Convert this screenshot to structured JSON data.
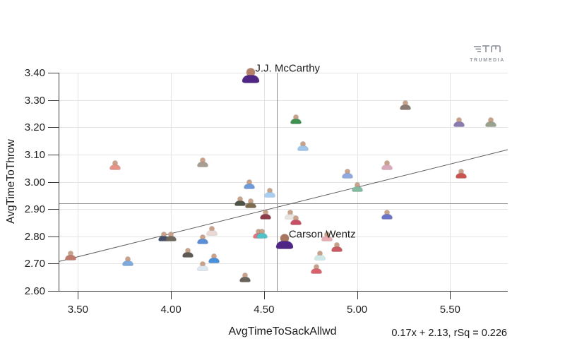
{
  "logo": {
    "text": "TRUMEDIA"
  },
  "chart_data": {
    "type": "scatter",
    "title": "",
    "xlabel": "AvgTimeToSackAllwd",
    "ylabel": "AvgTimeToThrow",
    "xlim": [
      3.4,
      5.81
    ],
    "ylim": [
      2.6,
      3.4
    ],
    "xticks": [
      3.5,
      4.0,
      4.5,
      5.0,
      5.5
    ],
    "yticks": [
      2.6,
      2.7,
      2.8,
      2.9,
      3.0,
      3.1,
      3.2,
      3.3,
      3.4
    ],
    "grid": true,
    "legend": "none",
    "mean_lines": {
      "x": 4.57,
      "y": 2.92
    },
    "trend": {
      "slope": 0.17,
      "intercept": 2.13,
      "rsq": 0.226,
      "equation": "0.17x + 2.13, rSq = 0.226"
    },
    "points": [
      {
        "x": 4.43,
        "y": 3.39,
        "jersey": "#4F2683",
        "skin": "#b5806a",
        "big": true,
        "label": "J.J. McCarthy"
      },
      {
        "x": 4.61,
        "y": 2.78,
        "jersey": "#4F2683",
        "skin": "#a8765f",
        "big": true,
        "label": "Carson Wentz"
      },
      {
        "x": 3.46,
        "y": 2.73,
        "jersey": "#c07a6d"
      },
      {
        "x": 3.7,
        "y": 3.06,
        "jersey": "#e59287"
      },
      {
        "x": 3.77,
        "y": 2.71,
        "jersey": "#7fa9dc"
      },
      {
        "x": 3.96,
        "y": 2.8,
        "jersey": "#45516b"
      },
      {
        "x": 4.0,
        "y": 2.8,
        "jersey": "#6d675c"
      },
      {
        "x": 4.09,
        "y": 2.74,
        "jersey": "#5e5952"
      },
      {
        "x": 4.17,
        "y": 3.07,
        "jersey": "#a79d90"
      },
      {
        "x": 4.17,
        "y": 2.79,
        "jersey": "#5b8ed6"
      },
      {
        "x": 4.17,
        "y": 2.69,
        "jersey": "#dde7f0"
      },
      {
        "x": 4.22,
        "y": 2.82,
        "jersey": "#e9d8d3"
      },
      {
        "x": 4.23,
        "y": 2.72,
        "jersey": "#4a90d9"
      },
      {
        "x": 4.37,
        "y": 2.93,
        "jersey": "#4c5244"
      },
      {
        "x": 4.4,
        "y": 2.65,
        "jersey": "#6a635b"
      },
      {
        "x": 4.42,
        "y": 2.99,
        "jersey": "#6f9bd8"
      },
      {
        "x": 4.43,
        "y": 2.92,
        "jersey": "#7c6b4e"
      },
      {
        "x": 4.47,
        "y": 2.81,
        "jersey": "#df7380"
      },
      {
        "x": 4.49,
        "y": 2.81,
        "jersey": "#52c2c9"
      },
      {
        "x": 4.51,
        "y": 2.88,
        "jersey": "#8e3e4a"
      },
      {
        "x": 4.53,
        "y": 2.96,
        "jersey": "#a9cef1"
      },
      {
        "x": 4.64,
        "y": 2.88,
        "jersey": "#e9e4df"
      },
      {
        "x": 4.67,
        "y": 2.86,
        "jersey": "#c65065"
      },
      {
        "x": 4.67,
        "y": 3.23,
        "jersey": "#41904f"
      },
      {
        "x": 4.71,
        "y": 3.13,
        "jersey": "#9ec4ea"
      },
      {
        "x": 4.78,
        "y": 2.68,
        "jersey": "#d9606b"
      },
      {
        "x": 4.8,
        "y": 2.73,
        "jersey": "#cfe9e9"
      },
      {
        "x": 4.84,
        "y": 2.8,
        "jersey": "#e9aab2"
      },
      {
        "x": 4.89,
        "y": 2.76,
        "jersey": "#c75b61"
      },
      {
        "x": 4.95,
        "y": 3.03,
        "jersey": "#90a9e1"
      },
      {
        "x": 5.0,
        "y": 2.98,
        "jersey": "#82b9a1"
      },
      {
        "x": 5.16,
        "y": 3.06,
        "jersey": "#d9a9b9"
      },
      {
        "x": 5.16,
        "y": 2.88,
        "jersey": "#6a74c9"
      },
      {
        "x": 5.26,
        "y": 3.28,
        "jersey": "#8a7a72"
      },
      {
        "x": 5.55,
        "y": 3.22,
        "jersey": "#8a7ab0"
      },
      {
        "x": 5.56,
        "y": 3.03,
        "jersey": "#c8534f"
      },
      {
        "x": 5.72,
        "y": 3.22,
        "jersey": "#9aa18f"
      }
    ]
  }
}
